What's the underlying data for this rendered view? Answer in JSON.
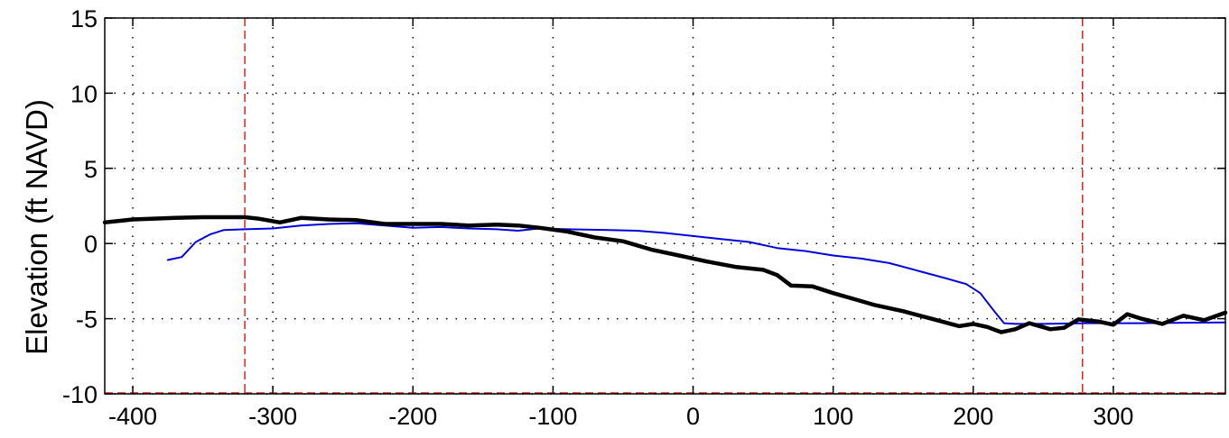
{
  "chart_data": {
    "type": "line",
    "title": "",
    "xlabel": "",
    "ylabel": "Elevation (ft NAVD)",
    "xlim": [
      -420,
      380
    ],
    "ylim": [
      -10,
      15
    ],
    "xticks": [
      -400,
      -300,
      -200,
      -100,
      0,
      100,
      200,
      300
    ],
    "yticks": [
      -10,
      -5,
      0,
      5,
      10,
      15
    ],
    "grid": true,
    "vlines": [
      -320,
      278
    ],
    "series": [
      {
        "color": "#0000dd",
        "points": [
          [
            -375,
            -1.1
          ],
          [
            -365,
            -0.9
          ],
          [
            -355,
            0.1
          ],
          [
            -345,
            0.6
          ],
          [
            -335,
            0.9
          ],
          [
            -320,
            0.95
          ],
          [
            -300,
            1.0
          ],
          [
            -280,
            1.2
          ],
          [
            -260,
            1.3
          ],
          [
            -240,
            1.35
          ],
          [
            -220,
            1.2
          ],
          [
            -200,
            1.05
          ],
          [
            -180,
            1.1
          ],
          [
            -160,
            1.0
          ],
          [
            -140,
            0.95
          ],
          [
            -125,
            0.85
          ],
          [
            -110,
            1.0
          ],
          [
            -90,
            0.95
          ],
          [
            -60,
            0.9
          ],
          [
            -40,
            0.85
          ],
          [
            -20,
            0.7
          ],
          [
            0,
            0.5
          ],
          [
            20,
            0.3
          ],
          [
            40,
            0.1
          ],
          [
            60,
            -0.3
          ],
          [
            80,
            -0.5
          ],
          [
            100,
            -0.8
          ],
          [
            120,
            -1.0
          ],
          [
            140,
            -1.3
          ],
          [
            160,
            -1.8
          ],
          [
            180,
            -2.3
          ],
          [
            195,
            -2.7
          ],
          [
            205,
            -3.3
          ],
          [
            215,
            -4.5
          ],
          [
            222,
            -5.3
          ],
          [
            230,
            -5.35
          ],
          [
            250,
            -5.35
          ],
          [
            280,
            -5.3
          ],
          [
            320,
            -5.3
          ],
          [
            380,
            -5.25
          ]
        ]
      },
      {
        "color": "#000000",
        "points": [
          [
            -420,
            1.4
          ],
          [
            -400,
            1.6
          ],
          [
            -370,
            1.7
          ],
          [
            -350,
            1.75
          ],
          [
            -320,
            1.75
          ],
          [
            -310,
            1.65
          ],
          [
            -295,
            1.4
          ],
          [
            -280,
            1.7
          ],
          [
            -260,
            1.6
          ],
          [
            -240,
            1.55
          ],
          [
            -220,
            1.3
          ],
          [
            -200,
            1.3
          ],
          [
            -180,
            1.3
          ],
          [
            -160,
            1.2
          ],
          [
            -140,
            1.25
          ],
          [
            -125,
            1.2
          ],
          [
            -110,
            1.05
          ],
          [
            -90,
            0.8
          ],
          [
            -70,
            0.4
          ],
          [
            -50,
            0.15
          ],
          [
            -30,
            -0.4
          ],
          [
            -10,
            -0.8
          ],
          [
            10,
            -1.2
          ],
          [
            30,
            -1.55
          ],
          [
            50,
            -1.75
          ],
          [
            60,
            -2.1
          ],
          [
            70,
            -2.8
          ],
          [
            85,
            -2.85
          ],
          [
            100,
            -3.3
          ],
          [
            115,
            -3.7
          ],
          [
            130,
            -4.1
          ],
          [
            150,
            -4.5
          ],
          [
            170,
            -5.0
          ],
          [
            190,
            -5.5
          ],
          [
            200,
            -5.35
          ],
          [
            210,
            -5.55
          ],
          [
            220,
            -5.9
          ],
          [
            230,
            -5.7
          ],
          [
            240,
            -5.3
          ],
          [
            255,
            -5.7
          ],
          [
            265,
            -5.6
          ],
          [
            275,
            -5.05
          ],
          [
            290,
            -5.2
          ],
          [
            300,
            -5.4
          ],
          [
            310,
            -4.7
          ],
          [
            320,
            -5.0
          ],
          [
            335,
            -5.35
          ],
          [
            350,
            -4.8
          ],
          [
            365,
            -5.1
          ],
          [
            380,
            -4.6
          ]
        ]
      }
    ]
  }
}
